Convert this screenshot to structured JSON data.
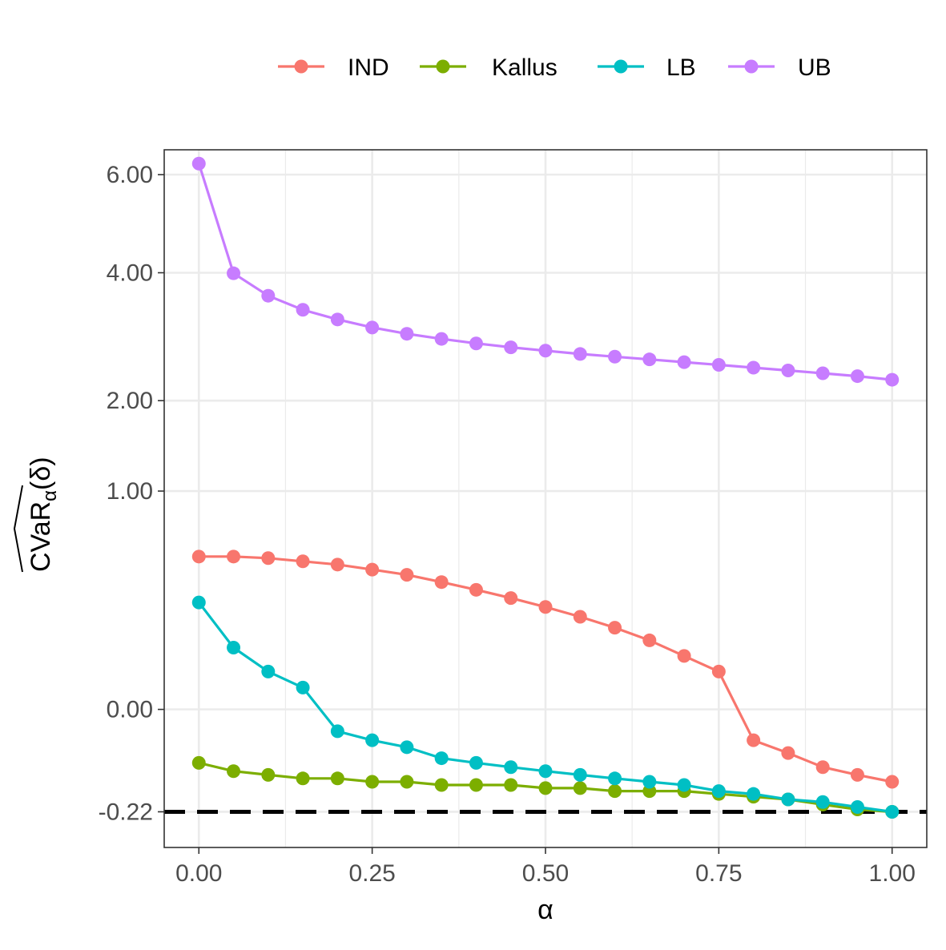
{
  "chart_data": {
    "type": "line",
    "x": [
      0.0,
      0.05,
      0.1,
      0.15,
      0.2,
      0.25,
      0.3,
      0.35,
      0.4,
      0.45,
      0.5,
      0.55,
      0.6,
      0.65,
      0.7,
      0.75,
      0.8,
      0.85,
      0.9,
      0.95,
      1.0
    ],
    "series": [
      {
        "name": "IND",
        "color": "#F8766D",
        "values": [
          0.49,
          0.49,
          0.48,
          0.46,
          0.44,
          0.41,
          0.38,
          0.34,
          0.3,
          0.26,
          0.22,
          0.18,
          0.14,
          0.1,
          0.06,
          0.03,
          -0.02,
          -0.04,
          -0.07,
          -0.09,
          -0.11
        ]
      },
      {
        "name": "Kallus",
        "color": "#7CAE00",
        "values": [
          -0.06,
          -0.08,
          -0.09,
          -0.1,
          -0.1,
          -0.11,
          -0.11,
          -0.12,
          -0.12,
          -0.12,
          -0.13,
          -0.13,
          -0.14,
          -0.14,
          -0.14,
          -0.15,
          -0.16,
          -0.17,
          -0.19,
          -0.21,
          -0.22
        ]
      },
      {
        "name": "LB",
        "color": "#00BFC4",
        "values": [
          0.24,
          0.08,
          0.03,
          0.01,
          -0.01,
          -0.02,
          -0.03,
          -0.05,
          -0.06,
          -0.07,
          -0.08,
          -0.09,
          -0.1,
          -0.11,
          -0.12,
          -0.14,
          -0.15,
          -0.17,
          -0.18,
          -0.2,
          -0.22
        ]
      },
      {
        "name": "UB",
        "color": "#C77CFF",
        "values": [
          6.25,
          3.99,
          3.59,
          3.35,
          3.19,
          3.06,
          2.96,
          2.88,
          2.81,
          2.75,
          2.7,
          2.65,
          2.61,
          2.57,
          2.53,
          2.49,
          2.45,
          2.41,
          2.37,
          2.33,
          2.28
        ]
      }
    ],
    "hline": {
      "value": -0.22,
      "style": "dashed",
      "color": "#000000"
    },
    "xlabel": "α",
    "ylabel": "CVaR",
    "ylabel_sub": "α",
    "ylabel_arg": "(δ)",
    "xticks": [
      "0.00",
      "0.25",
      "0.50",
      "0.75",
      "1.00"
    ],
    "yticks": [
      "-0.22",
      "0.00",
      "1.00",
      "2.00",
      "4.00",
      "6.00"
    ],
    "xlim": [
      -0.05,
      1.05
    ],
    "y_scale": "square-root",
    "grid": true,
    "legend_position": "top"
  }
}
